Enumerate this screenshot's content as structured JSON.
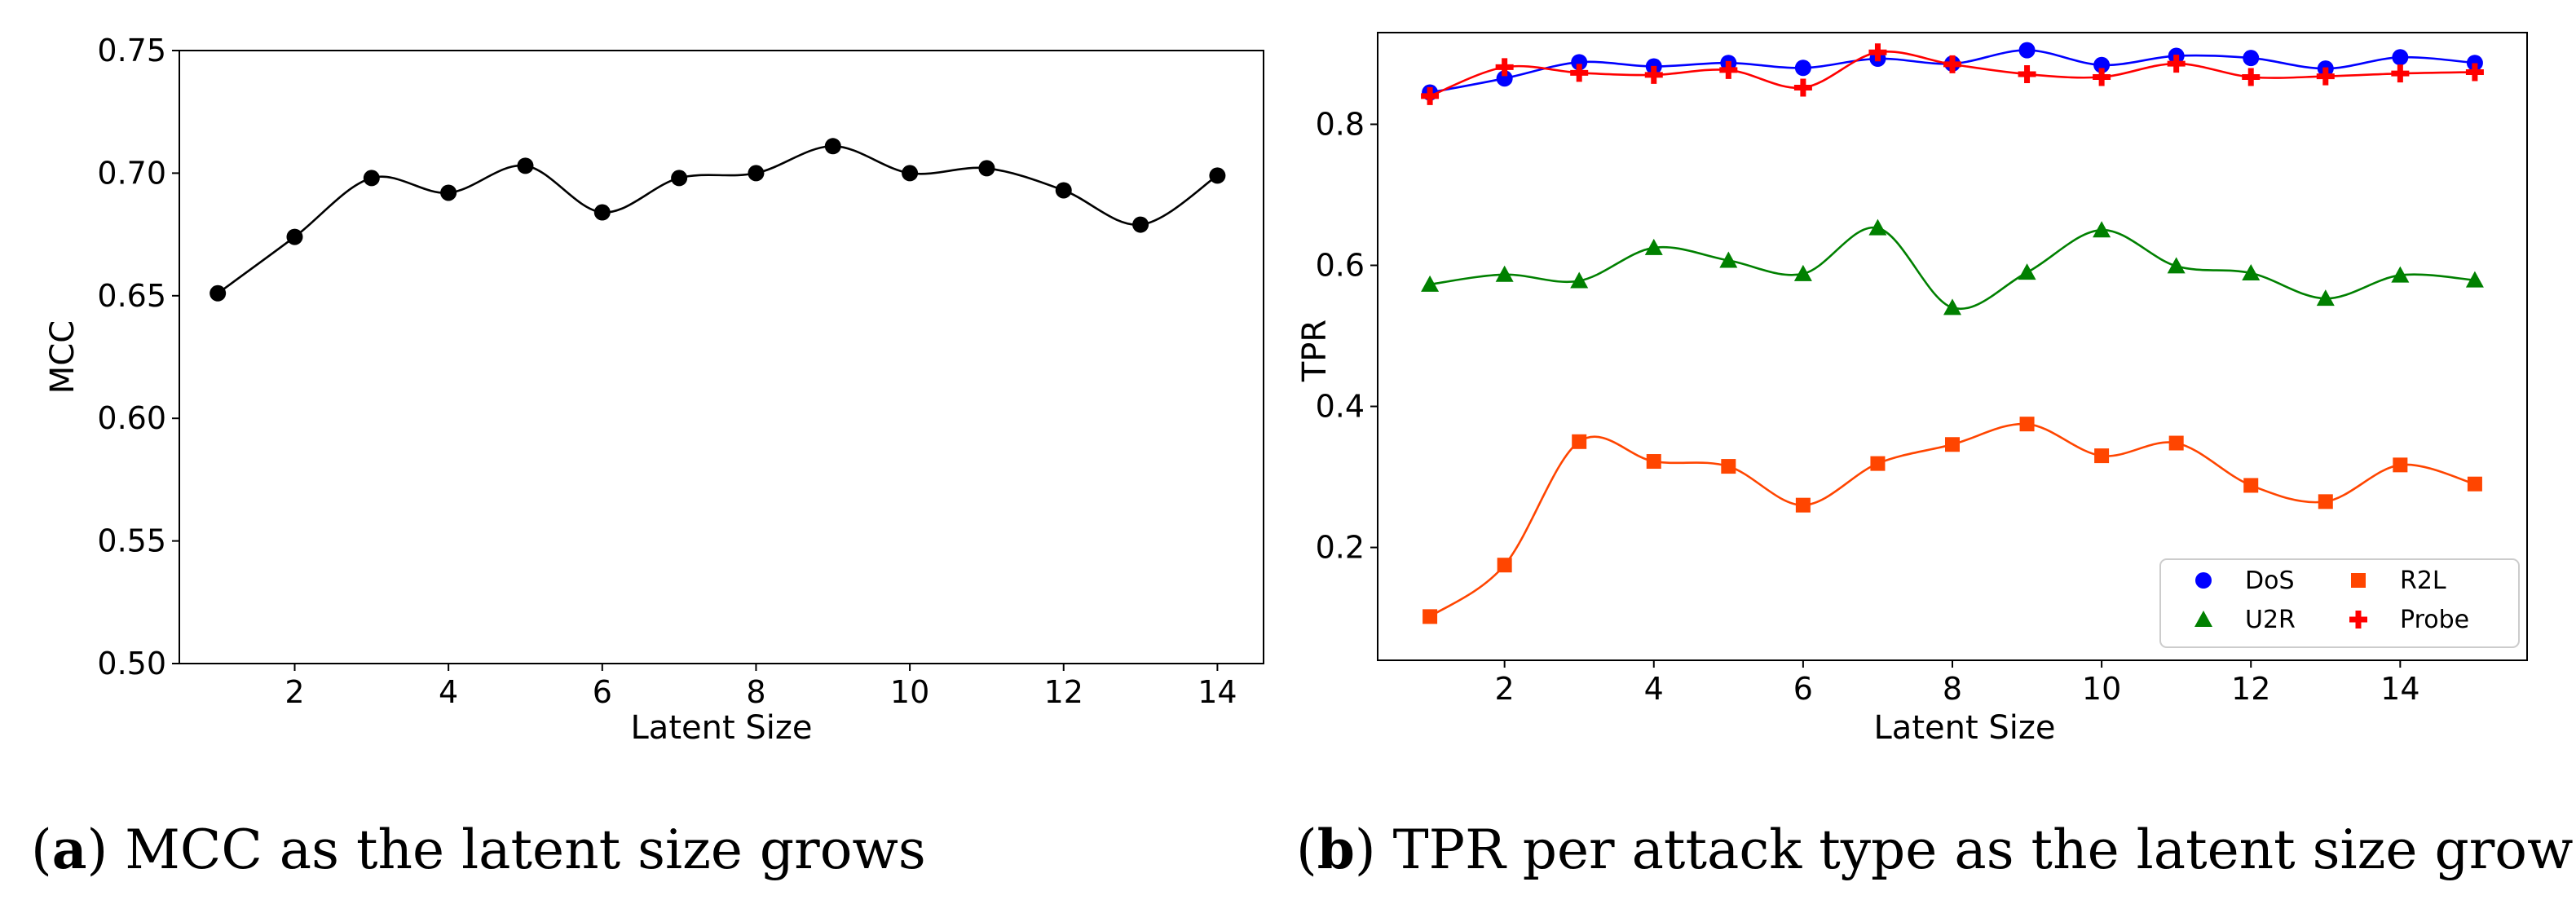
{
  "chart_data": [
    {
      "type": "line",
      "caption": {
        "open": "(",
        "letter": "a",
        "text": ") MCC as the latent size grows"
      },
      "xlabel": "Latent Size",
      "ylabel": "MCC",
      "xlim": [
        0.5,
        14.6
      ],
      "ylim": [
        0.5,
        0.75
      ],
      "xticks": [
        2,
        4,
        6,
        8,
        10,
        12,
        14
      ],
      "yticks": [
        "0.50",
        "0.55",
        "0.60",
        "0.65",
        "0.70",
        "0.75"
      ],
      "series": [
        {
          "name": "MCC",
          "color": "#000000",
          "marker": "circle",
          "x": [
            1,
            2,
            3,
            4,
            5,
            6,
            7,
            8,
            9,
            10,
            11,
            12,
            13,
            14
          ],
          "values": [
            0.651,
            0.674,
            0.698,
            0.692,
            0.703,
            0.684,
            0.698,
            0.7,
            0.711,
            0.7,
            0.702,
            0.693,
            0.679,
            0.699
          ]
        }
      ]
    },
    {
      "type": "line",
      "caption": {
        "open": "(",
        "letter": "b",
        "text": ") TPR per attack type as the latent size grows"
      },
      "xlabel": "Latent Size",
      "ylabel": "TPR",
      "xlim": [
        0.3,
        15.7
      ],
      "ylim": [
        0.04,
        0.93
      ],
      "xticks": [
        2,
        4,
        6,
        8,
        10,
        12,
        14
      ],
      "yticks": [
        "0.2",
        "0.4",
        "0.6",
        "0.8"
      ],
      "legend_position": "lower right",
      "series": [
        {
          "name": "DoS",
          "color": "#0000ff",
          "marker": "circle",
          "x": [
            1,
            2,
            3,
            4,
            5,
            6,
            7,
            8,
            9,
            10,
            11,
            12,
            13,
            14,
            15
          ],
          "values": [
            0.845,
            0.865,
            0.888,
            0.882,
            0.887,
            0.88,
            0.893,
            0.886,
            0.905,
            0.884,
            0.897,
            0.894,
            0.879,
            0.895,
            0.887
          ]
        },
        {
          "name": "U2R",
          "color": "#008000",
          "marker": "triangle",
          "x": [
            1,
            2,
            3,
            4,
            5,
            6,
            7,
            8,
            9,
            10,
            11,
            12,
            13,
            14,
            15
          ],
          "values": [
            0.573,
            0.587,
            0.578,
            0.625,
            0.607,
            0.588,
            0.653,
            0.54,
            0.59,
            0.65,
            0.599,
            0.589,
            0.553,
            0.586,
            0.579
          ]
        },
        {
          "name": "R2L",
          "color": "#ff4500",
          "marker": "square",
          "x": [
            1,
            2,
            3,
            4,
            5,
            6,
            7,
            8,
            9,
            10,
            11,
            12,
            13,
            14,
            15
          ],
          "values": [
            0.102,
            0.175,
            0.35,
            0.322,
            0.315,
            0.26,
            0.319,
            0.346,
            0.375,
            0.33,
            0.348,
            0.288,
            0.265,
            0.317,
            0.29
          ]
        },
        {
          "name": "Probe",
          "color": "#ff0000",
          "marker": "plus",
          "x": [
            1,
            2,
            3,
            4,
            5,
            6,
            7,
            8,
            9,
            10,
            11,
            12,
            13,
            14,
            15
          ],
          "values": [
            0.84,
            0.881,
            0.873,
            0.87,
            0.877,
            0.852,
            0.902,
            0.885,
            0.871,
            0.867,
            0.886,
            0.867,
            0.868,
            0.872,
            0.874
          ]
        }
      ]
    }
  ]
}
